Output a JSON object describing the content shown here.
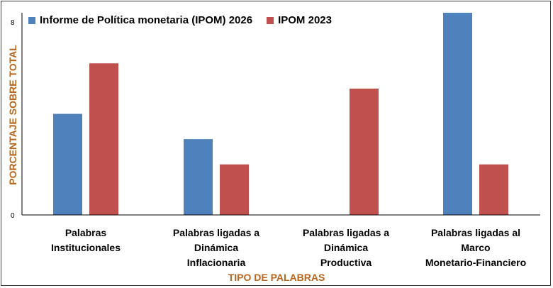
{
  "chart_data": {
    "type": "bar",
    "title": "",
    "xlabel": "TIPO DE PALABRAS",
    "ylabel": "PORCENTAJE SOBRE TOTAL",
    "ylim": [
      0,
      8
    ],
    "yticks": [
      "0",
      "8"
    ],
    "grid": false,
    "legend_position": "top-left",
    "categories": [
      [
        "Palabras",
        "Institucionales"
      ],
      [
        "Palabras ligadas a",
        "Dinámica",
        "Inflacionaria"
      ],
      [
        "Palabras ligadas a",
        "Dinámica",
        "Productiva"
      ],
      [
        "Palabras ligadas al",
        "Marco",
        "Monetario-Financiero"
      ]
    ],
    "series": [
      {
        "name": "Informe de Política monetaria (IPOM) 2026",
        "color": "#4f81bd",
        "values": [
          4.0,
          3.0,
          0,
          8.0
        ]
      },
      {
        "name": "IPOM 2023",
        "color": "#c0504d",
        "values": [
          6.0,
          2.0,
          5.0,
          2.0
        ]
      }
    ]
  }
}
